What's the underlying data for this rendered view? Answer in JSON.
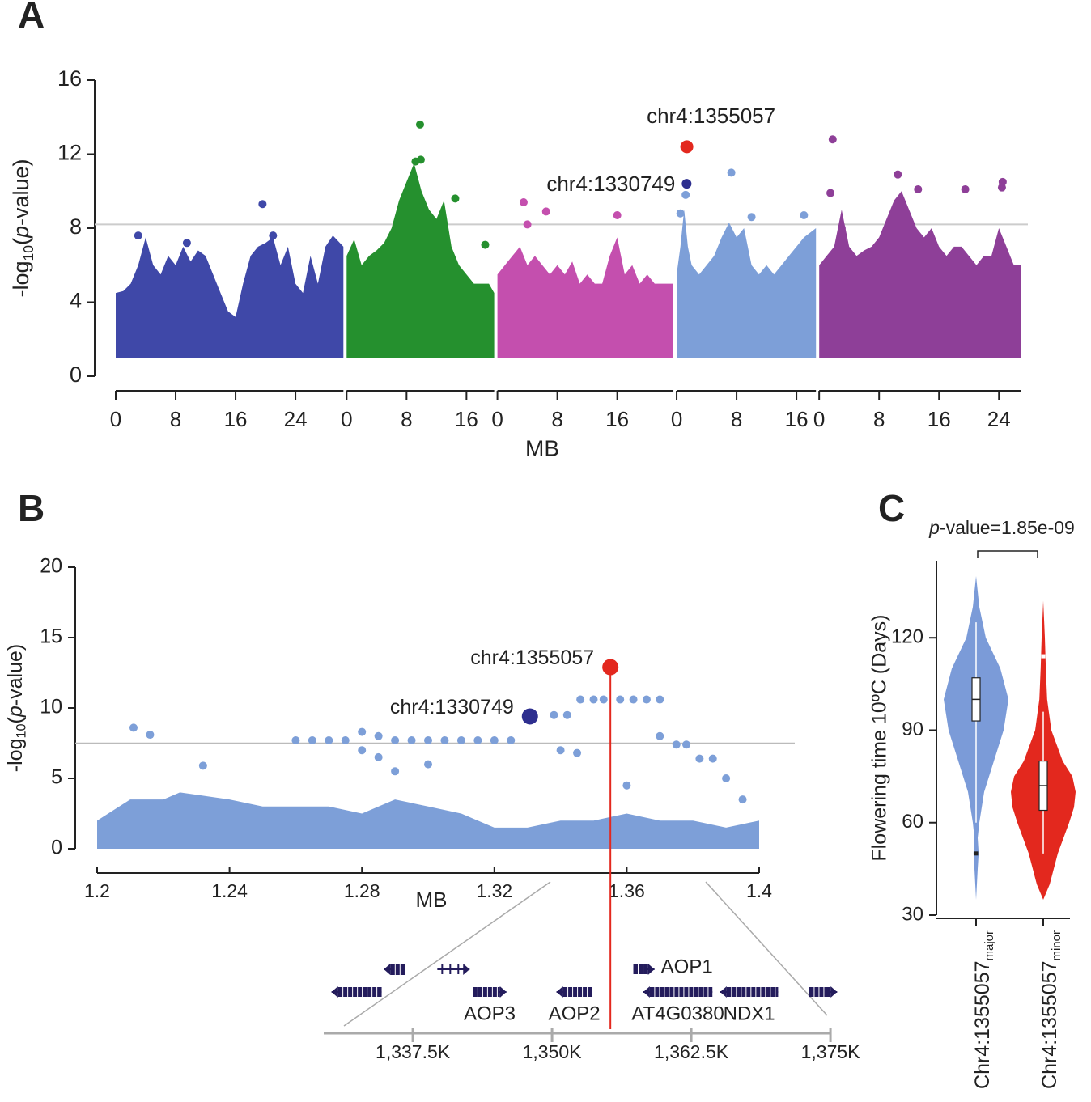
{
  "chart_data": [
    {
      "type": "manhattan",
      "panel": "A",
      "ylabel": [
        "-log",
        "10",
        "(",
        "p",
        "-value)"
      ],
      "xlabel": "MB",
      "ylim": [
        0,
        16
      ],
      "yticks": [
        0,
        4,
        8,
        12,
        16
      ],
      "threshold": 8.2,
      "chromosomes": [
        {
          "color": "#3f48a8",
          "xlim": [
            0,
            30.4
          ],
          "xticks": [
            0,
            8,
            16,
            24
          ],
          "cloud": {
            "x": [
              0,
              0,
              1,
              2,
              3,
              4,
              5,
              6,
              7,
              8,
              9,
              10,
              11,
              12,
              13,
              14,
              15,
              16,
              17,
              18,
              19,
              20,
              21,
              22,
              23,
              24,
              25,
              26,
              27,
              28,
              29,
              30.4,
              30.4
            ],
            "y": [
              1,
              4.5,
              4.6,
              5,
              6,
              7.5,
              6,
              5.5,
              6.5,
              6,
              7,
              6.2,
              6.8,
              6.5,
              5.5,
              4.5,
              3.5,
              3.2,
              5,
              6.5,
              7,
              7.2,
              7.5,
              6,
              7,
              5,
              4.5,
              6.5,
              5,
              7,
              7.6,
              7,
              1
            ]
          },
          "points": {
            "x": [
              19.6,
              3,
              9.5,
              21
            ],
            "y": [
              9.3,
              7.6,
              7.2,
              7.6
            ]
          },
          "highlights": []
        },
        {
          "color": "#25902e",
          "xlim": [
            0,
            19.7
          ],
          "xticks": [
            0,
            8,
            16
          ],
          "cloud": {
            "x": [
              0,
              0,
              1,
              2,
              3,
              4,
              5,
              6,
              7,
              8,
              9,
              10,
              11,
              12,
              13,
              14,
              15,
              16,
              17,
              18,
              19,
              19.7,
              19.7
            ],
            "y": [
              1,
              6.5,
              7.4,
              6,
              6.5,
              6.8,
              7.2,
              8,
              9.5,
              10.5,
              11.5,
              10,
              9,
              8.5,
              9.5,
              7,
              6,
              5.5,
              5,
              5,
              5,
              4.5,
              1
            ]
          },
          "points": {
            "x": [
              9.8,
              9.2,
              9.9,
              14.5,
              8.8,
              18.5
            ],
            "y": [
              13.6,
              11.6,
              11.7,
              9.6,
              10.5,
              7.1
            ]
          },
          "highlights": []
        },
        {
          "color": "#c44fae",
          "xlim": [
            0,
            23.5
          ],
          "xticks": [
            0,
            8,
            16
          ],
          "cloud": {
            "x": [
              0,
              0,
              1,
              2,
              3,
              4,
              5,
              6,
              7,
              8,
              9,
              10,
              11,
              12,
              13,
              14,
              15,
              16,
              17,
              18,
              19,
              20,
              21,
              22,
              23.5,
              23.5
            ],
            "y": [
              1,
              5.5,
              6,
              6.5,
              7,
              6,
              6.5,
              6,
              5.5,
              6,
              5.5,
              6.2,
              5,
              5.5,
              5,
              5,
              6.5,
              7.5,
              5.5,
              6,
              5,
              5.5,
              5,
              5,
              5,
              1
            ]
          },
          "points": {
            "x": [
              3.5,
              6.5,
              16,
              4
            ],
            "y": [
              9.4,
              8.9,
              8.7,
              8.2
            ]
          },
          "highlights": []
        },
        {
          "color": "#7d9fd8",
          "xlim": [
            0,
            18.6
          ],
          "xticks": [
            0,
            8,
            16
          ],
          "cloud": {
            "x": [
              0,
              0,
              0.5,
              1,
              1.5,
              2,
              3,
              4,
              5,
              6,
              7,
              8,
              9,
              10,
              11,
              12,
              13,
              14,
              15,
              16,
              17,
              18.6,
              18.6
            ],
            "y": [
              1,
              5.5,
              7,
              9,
              7,
              6,
              5.5,
              6,
              6.5,
              7.5,
              8.3,
              7.5,
              8,
              6,
              5.5,
              6,
              5.5,
              6,
              6.5,
              7,
              7.5,
              8,
              1
            ]
          },
          "points": {
            "x": [
              7.3,
              1.2,
              0.5,
              10,
              17
            ],
            "y": [
              11,
              9.8,
              8.8,
              8.6,
              8.7
            ]
          },
          "highlights": [
            {
              "label": "chr4:1355057",
              "x": 1.355057,
              "y": 12.4,
              "color": "#e3281e"
            },
            {
              "label": "chr4:1330749",
              "x": 1.330749,
              "y": 10.4,
              "color": "#2e2f8f"
            }
          ]
        },
        {
          "color": "#8e3f98",
          "xlim": [
            0,
            27
          ],
          "xticks": [
            0,
            8,
            16,
            24
          ],
          "cloud": {
            "x": [
              0,
              0,
              1,
              2,
              3,
              4,
              5,
              6,
              7,
              8,
              9,
              10,
              11,
              12,
              13,
              14,
              15,
              16,
              17,
              18,
              19,
              20,
              21,
              22,
              23,
              24,
              25,
              26,
              27,
              27
            ],
            "y": [
              1,
              6,
              6.5,
              7,
              9,
              7,
              6.5,
              6.8,
              7,
              7.5,
              8.5,
              9.5,
              10,
              9,
              8,
              7.5,
              8,
              7,
              6.5,
              7,
              7,
              6.5,
              6,
              6.5,
              6.5,
              8,
              7,
              6,
              6,
              1
            ]
          },
          "points": {
            "x": [
              1.8,
              1.5,
              10.5,
              13.2,
              19.5,
              24.5,
              24.4,
              3
            ],
            "y": [
              12.8,
              9.9,
              10.9,
              10.1,
              10.1,
              10.5,
              10.2,
              8
            ]
          },
          "highlights": []
        }
      ]
    },
    {
      "type": "regional",
      "panel": "B",
      "ylabel": [
        "-log",
        "10",
        "(",
        "p",
        "-value)"
      ],
      "xlabel": "MB",
      "xlim": [
        1.2,
        1.4
      ],
      "xticks": [
        1.2,
        1.24,
        1.28,
        1.32,
        1.36,
        1.4
      ],
      "ylim": [
        0,
        20
      ],
      "yticks": [
        0,
        5,
        10,
        15,
        20
      ],
      "threshold": 7.5,
      "color": "#7d9fd8",
      "cloud": {
        "x": [
          1.2,
          1.2,
          1.21,
          1.22,
          1.225,
          1.24,
          1.25,
          1.26,
          1.27,
          1.28,
          1.29,
          1.3,
          1.31,
          1.32,
          1.33,
          1.34,
          1.35,
          1.36,
          1.37,
          1.38,
          1.39,
          1.4,
          1.4
        ],
        "y": [
          0,
          2,
          3.5,
          3.5,
          4,
          3.5,
          3,
          3,
          3,
          2.5,
          3.5,
          3,
          2.5,
          1.5,
          1.5,
          2,
          2,
          2.5,
          2,
          2,
          1.5,
          2,
          0
        ]
      },
      "points": {
        "x": [
          1.211,
          1.216,
          1.232,
          1.26,
          1.265,
          1.27,
          1.275,
          1.28,
          1.285,
          1.29,
          1.295,
          1.3,
          1.305,
          1.31,
          1.315,
          1.32,
          1.325,
          1.338,
          1.342,
          1.346,
          1.35,
          1.353,
          1.358,
          1.362,
          1.366,
          1.37,
          1.375,
          1.378,
          1.382,
          1.386,
          1.39,
          1.395,
          1.285,
          1.29,
          1.3,
          1.34,
          1.345,
          1.36,
          1.37,
          1.28
        ],
        "y": [
          8.6,
          8.1,
          5.9,
          7.7,
          7.7,
          7.7,
          7.7,
          8.3,
          8.0,
          7.7,
          7.7,
          7.7,
          7.7,
          7.7,
          7.7,
          7.7,
          7.7,
          9.5,
          9.5,
          10.6,
          10.6,
          10.6,
          10.6,
          10.6,
          10.6,
          10.6,
          7.4,
          7.4,
          6.4,
          6.4,
          5.0,
          3.5,
          6.5,
          5.5,
          6.0,
          7.0,
          6.8,
          4.5,
          8.0,
          7.0
        ]
      },
      "highlights": [
        {
          "label": "chr4:1355057",
          "x": 1.355057,
          "y": 12.9,
          "color": "#e3281e"
        },
        {
          "label": "chr4:1330749",
          "x": 1.330749,
          "y": 9.4,
          "color": "#2e2f8f"
        }
      ],
      "genes": {
        "xlim": [
          1329.5,
          1376.5
        ],
        "color": "#241c5c",
        "xticks": [
          {
            "value": 1337.5,
            "label": "1,337.5K"
          },
          {
            "value": 1350,
            "label": "1,350K"
          },
          {
            "value": 1362.5,
            "label": "1,362.5K"
          },
          {
            "value": 1375,
            "label": "1,375K"
          }
        ],
        "items": [
          {
            "name": null,
            "start": 1334.9,
            "end": 1336.8,
            "strand": "-"
          },
          {
            "name": null,
            "start": 1339.7,
            "end": 1342.6,
            "strand": "+"
          },
          {
            "name": null,
            "start": 1330.2,
            "end": 1334.7,
            "strand": "-"
          },
          {
            "name": "AOP3",
            "start": 1342.9,
            "end": 1345.9,
            "strand": "+"
          },
          {
            "name": "AOP2",
            "start": 1350.4,
            "end": 1353.6,
            "strand": "-"
          },
          {
            "name": "AOP1",
            "start": 1357.3,
            "end": 1359.2,
            "strand": "+"
          },
          {
            "name": "AT4G0380",
            "start": 1358.2,
            "end": 1364.4,
            "strand": "-"
          },
          {
            "name": "NDX1",
            "start": 1365.1,
            "end": 1370.3,
            "strand": "-"
          },
          {
            "name": null,
            "start": 1373.1,
            "end": 1375.6,
            "strand": "+"
          }
        ]
      }
    },
    {
      "type": "violin",
      "panel": "C",
      "title": [
        "p",
        "-value=1.85e-09"
      ],
      "ylabel": "Flowering time 10ºC (Days)",
      "ylim": [
        30,
        145
      ],
      "yticks": [
        30,
        60,
        90,
        120
      ],
      "groups": [
        {
          "label": "Chr4:1355057",
          "sub": "major",
          "color": "#7b9bd8",
          "violin": {
            "y": [
              35,
              45,
              50,
              55,
              60,
              70,
              80,
              90,
              100,
              110,
              120,
              130,
              140
            ],
            "density": [
              0,
              0.05,
              0.08,
              0.05,
              0.1,
              0.25,
              0.55,
              0.85,
              1,
              0.75,
              0.3,
              0.1,
              0
            ]
          },
          "box": {
            "whisker_low": 60,
            "q1": 93,
            "median": 100,
            "q3": 107,
            "whisker_high": 125
          },
          "outliers": [
            50
          ]
        },
        {
          "label": "Chr4:1355057",
          "sub": "minor",
          "color": "#e3281e",
          "violin": {
            "y": [
              35,
              40,
              50,
              60,
              65,
              70,
              75,
              80,
              90,
              100,
              110,
              120,
              132
            ],
            "density": [
              0,
              0.2,
              0.45,
              0.8,
              0.95,
              1,
              0.9,
              0.6,
              0.25,
              0.12,
              0.08,
              0.05,
              0
            ]
          },
          "box": {
            "whisker_low": 50,
            "q1": 64,
            "median": 72,
            "q3": 80,
            "whisker_high": 96
          },
          "outliers": [
            114
          ]
        }
      ]
    }
  ]
}
